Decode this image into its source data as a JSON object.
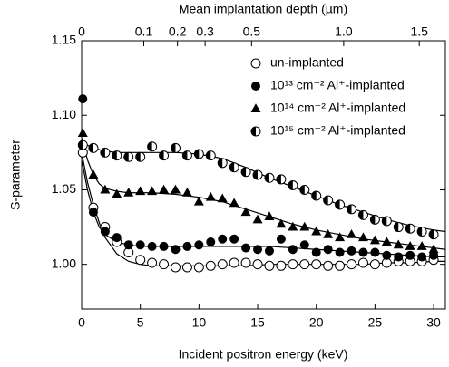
{
  "chart_data": {
    "type": "scatter",
    "title": "Mean implantation depth (µm)",
    "xlabel": "Incident positron energy (keV)",
    "ylabel": "S-parameter",
    "x": [
      0.1,
      1,
      2,
      3,
      4,
      5,
      6,
      7,
      8,
      9,
      10,
      11,
      12,
      13,
      14,
      15,
      16,
      17,
      18,
      19,
      20,
      21,
      22,
      23,
      24,
      25,
      26,
      27,
      28,
      29,
      30
    ],
    "fit_x": [
      0,
      0.5,
      1,
      1.5,
      2,
      3,
      4,
      5,
      6,
      8,
      10,
      12,
      14,
      16,
      18,
      20,
      22,
      24,
      26,
      28,
      30,
      31
    ],
    "series": [
      {
        "name": "un-implanted",
        "color": "#000000",
        "marker": "circle-open",
        "values": [
          1.075,
          1.038,
          1.025,
          1.015,
          1.008,
          1.003,
          1.001,
          1.0,
          0.998,
          0.998,
          0.998,
          0.999,
          1.0,
          1.001,
          1.001,
          1.0,
          0.999,
          0.999,
          1.0,
          1.0,
          1.0,
          0.999,
          0.999,
          1.0,
          1.001,
          1.0,
          1.001,
          1.002,
          1.002,
          1.002,
          1.003
        ],
        "fit": [
          1.075,
          1.055,
          1.04,
          1.028,
          1.018,
          1.007,
          1.002,
          1.0,
          0.999,
          0.999,
          0.999,
          0.999,
          0.999,
          1.0,
          1.0,
          1.0,
          1.0,
          1.0,
          1.001,
          1.001,
          1.002,
          1.002
        ]
      },
      {
        "name": "10¹³ cm⁻² Al⁺-implanted",
        "color": "#000000",
        "marker": "circle",
        "values": [
          1.111,
          1.035,
          1.022,
          1.018,
          1.013,
          1.013,
          1.012,
          1.012,
          1.01,
          1.012,
          1.013,
          1.015,
          1.017,
          1.017,
          1.011,
          1.01,
          1.009,
          1.017,
          1.01,
          1.013,
          1.008,
          1.01,
          1.008,
          1.009,
          1.008,
          1.008,
          1.006,
          1.005,
          1.006,
          1.005,
          1.006
        ],
        "fit": [
          1.07,
          1.05,
          1.035,
          1.025,
          1.02,
          1.015,
          1.013,
          1.012,
          1.012,
          1.012,
          1.012,
          1.012,
          1.012,
          1.012,
          1.011,
          1.01,
          1.009,
          1.008,
          1.007,
          1.006,
          1.005,
          1.005
        ]
      },
      {
        "name": "10¹⁴ cm⁻² Al⁺-implanted",
        "color": "#000000",
        "marker": "triangle",
        "values": [
          1.088,
          1.06,
          1.05,
          1.047,
          1.048,
          1.049,
          1.049,
          1.05,
          1.05,
          1.048,
          1.042,
          1.045,
          1.044,
          1.041,
          1.035,
          1.03,
          1.032,
          1.027,
          1.025,
          1.025,
          1.022,
          1.02,
          1.018,
          1.02,
          1.018,
          1.016,
          1.015,
          1.013,
          1.012,
          1.012,
          1.01
        ],
        "fit": [
          1.085,
          1.07,
          1.06,
          1.054,
          1.051,
          1.049,
          1.048,
          1.048,
          1.048,
          1.047,
          1.045,
          1.042,
          1.037,
          1.032,
          1.027,
          1.023,
          1.02,
          1.017,
          1.015,
          1.013,
          1.011,
          1.01
        ]
      },
      {
        "name": "10¹⁵ cm⁻² Al⁺-implanted",
        "color": "#000000",
        "marker": "circle-half",
        "values": [
          1.08,
          1.078,
          1.075,
          1.073,
          1.072,
          1.072,
          1.079,
          1.073,
          1.078,
          1.073,
          1.074,
          1.073,
          1.068,
          1.065,
          1.062,
          1.06,
          1.058,
          1.057,
          1.053,
          1.05,
          1.046,
          1.043,
          1.04,
          1.037,
          1.033,
          1.03,
          1.029,
          1.025,
          1.024,
          1.022,
          1.02
        ],
        "fit": [
          1.082,
          1.08,
          1.078,
          1.077,
          1.076,
          1.075,
          1.075,
          1.075,
          1.075,
          1.075,
          1.074,
          1.071,
          1.065,
          1.058,
          1.052,
          1.046,
          1.04,
          1.035,
          1.03,
          1.026,
          1.023,
          1.022
        ]
      }
    ],
    "xlim": [
      0,
      31
    ],
    "xticks": [
      0,
      5,
      10,
      15,
      20,
      25,
      30
    ],
    "ylim": [
      0.97,
      1.15
    ],
    "yticks": [
      {
        "value": 1.0,
        "label": "1.00"
      },
      {
        "value": 1.05,
        "label": "1.05"
      },
      {
        "value": 1.1,
        "label": "1.10"
      },
      {
        "value": 1.15,
        "label": "1.15"
      }
    ],
    "x2lim": [
      0,
      1.69
    ],
    "x2scale": "power",
    "x2exponent": 0.625,
    "x2ticks": [
      0,
      0.1,
      0.2,
      0.3,
      0.5,
      {
        "value": 1.0,
        "label": "1.0"
      },
      1.5
    ],
    "legend": "upper right",
    "grid": false
  }
}
